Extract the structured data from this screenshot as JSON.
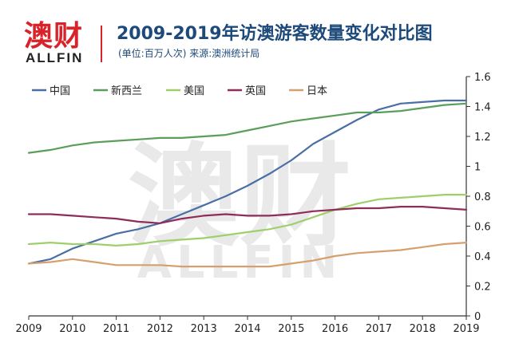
{
  "header": {
    "logo_main": "澳财",
    "logo_sub": "ALLFIN",
    "title": "2009-2019年访澳游客数量变化对比图",
    "subtitle": "(单位:百万人次)  来源:澳洲统计局"
  },
  "watermark": {
    "main": "澳财",
    "sub": "ALLFIN"
  },
  "colors": {
    "中国": "#4a6fa5",
    "新西兰": "#5b9e5b",
    "美国": "#9fcf6a",
    "英国": "#8e2c5a",
    "日本": "#d6a06e",
    "axis": "#333333"
  },
  "chart_data": {
    "type": "line",
    "x": [
      2009,
      2009.5,
      2010,
      2010.5,
      2011,
      2011.5,
      2012,
      2012.5,
      2013,
      2013.5,
      2014,
      2014.5,
      2015,
      2015.5,
      2016,
      2016.5,
      2017,
      2017.5,
      2018,
      2018.5,
      2019
    ],
    "series": [
      {
        "name": "中国",
        "values": [
          0.35,
          0.38,
          0.45,
          0.5,
          0.55,
          0.58,
          0.62,
          0.68,
          0.74,
          0.8,
          0.87,
          0.95,
          1.04,
          1.15,
          1.23,
          1.31,
          1.38,
          1.42,
          1.43,
          1.44,
          1.44
        ]
      },
      {
        "name": "新西兰",
        "values": [
          1.09,
          1.11,
          1.14,
          1.16,
          1.17,
          1.18,
          1.19,
          1.19,
          1.2,
          1.21,
          1.24,
          1.27,
          1.3,
          1.32,
          1.34,
          1.36,
          1.36,
          1.37,
          1.39,
          1.41,
          1.42
        ]
      },
      {
        "name": "美国",
        "values": [
          0.48,
          0.49,
          0.48,
          0.48,
          0.47,
          0.48,
          0.5,
          0.51,
          0.52,
          0.54,
          0.56,
          0.58,
          0.61,
          0.66,
          0.71,
          0.75,
          0.78,
          0.79,
          0.8,
          0.81,
          0.81
        ]
      },
      {
        "name": "英国",
        "values": [
          0.68,
          0.68,
          0.67,
          0.66,
          0.65,
          0.63,
          0.62,
          0.65,
          0.67,
          0.68,
          0.67,
          0.67,
          0.68,
          0.7,
          0.71,
          0.72,
          0.72,
          0.73,
          0.73,
          0.72,
          0.71
        ]
      },
      {
        "name": "日本",
        "values": [
          0.35,
          0.36,
          0.38,
          0.36,
          0.34,
          0.34,
          0.34,
          0.33,
          0.33,
          0.33,
          0.33,
          0.33,
          0.35,
          0.37,
          0.4,
          0.42,
          0.43,
          0.44,
          0.46,
          0.48,
          0.49
        ]
      }
    ],
    "x_ticks": [
      "2009",
      "2010",
      "2011",
      "2012",
      "2013",
      "2014",
      "2015",
      "2016",
      "2017",
      "2018",
      "2019"
    ],
    "y_ticks": [
      "0",
      "0.2",
      "0.4",
      "0.6",
      "0.8",
      "1",
      "1.2",
      "1.4",
      "1.6"
    ],
    "xlim": [
      2009,
      2019
    ],
    "ylim": [
      0,
      1.6
    ],
    "grid": false,
    "legend": "top-left",
    "title": "2009-2019年访澳游客数量变化对比图",
    "xlabel": "",
    "ylabel": ""
  }
}
